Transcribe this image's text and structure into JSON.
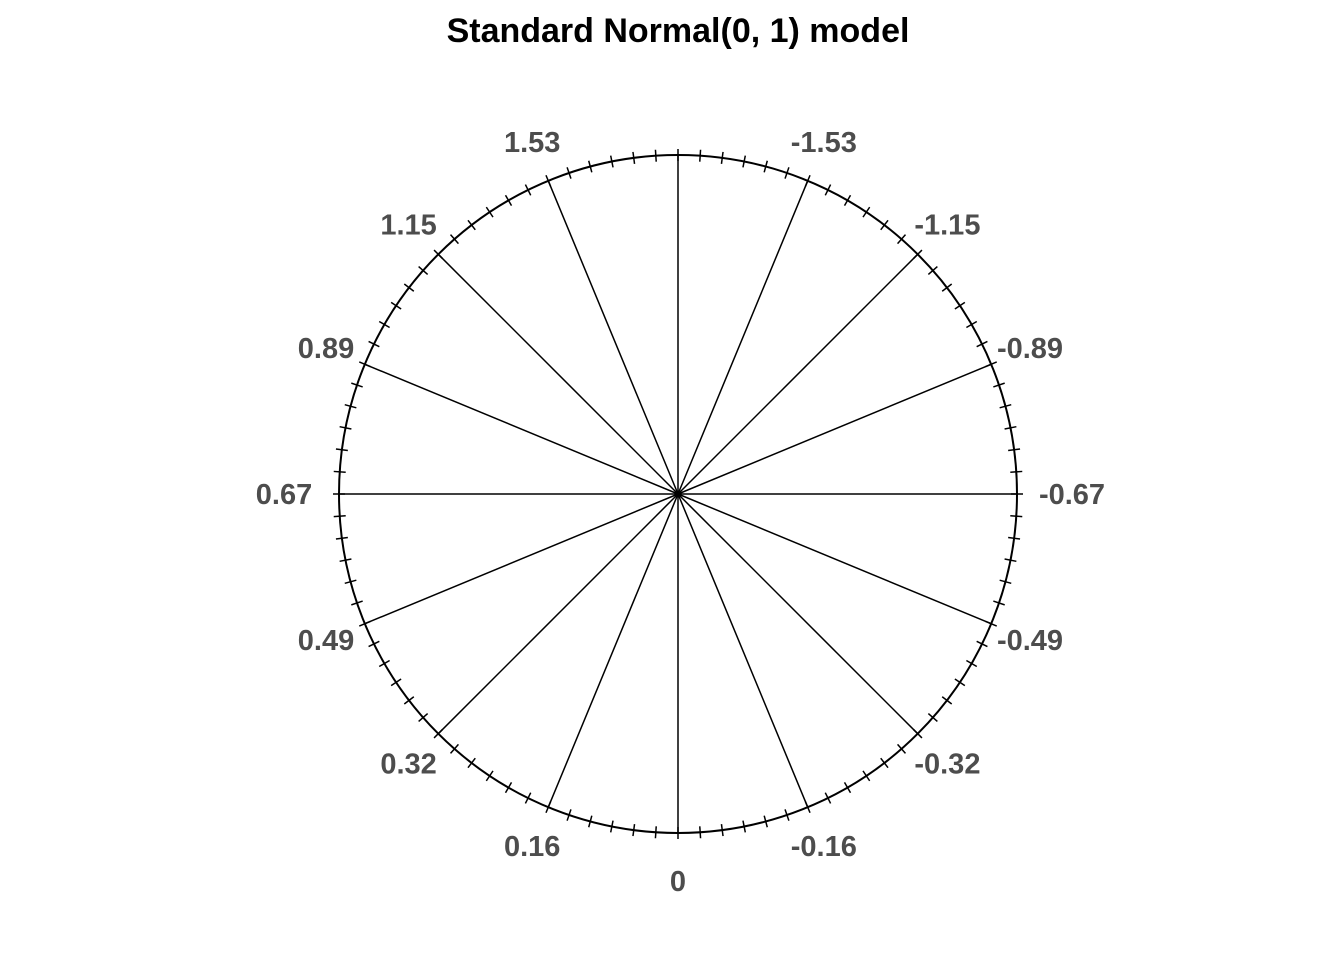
{
  "chart_data": {
    "type": "pie",
    "subtype": "circular quantile dial",
    "title": "Standard Normal(0, 1) model",
    "spoke_step_degrees": 22.5,
    "minor_ticks_per_spoke_interval": 6,
    "spoke_labels": [
      "0",
      "0.16",
      "0.32",
      "0.49",
      "0.67",
      "0.89",
      "1.15",
      "1.53",
      "",
      "-1.53",
      "-1.15",
      "-0.89",
      "-0.67",
      "-0.49",
      "-0.32",
      "-0.16"
    ],
    "label_direction": "clockwise from bottom",
    "colors": {
      "line": "#000000",
      "label": "#4d4d4d"
    }
  }
}
